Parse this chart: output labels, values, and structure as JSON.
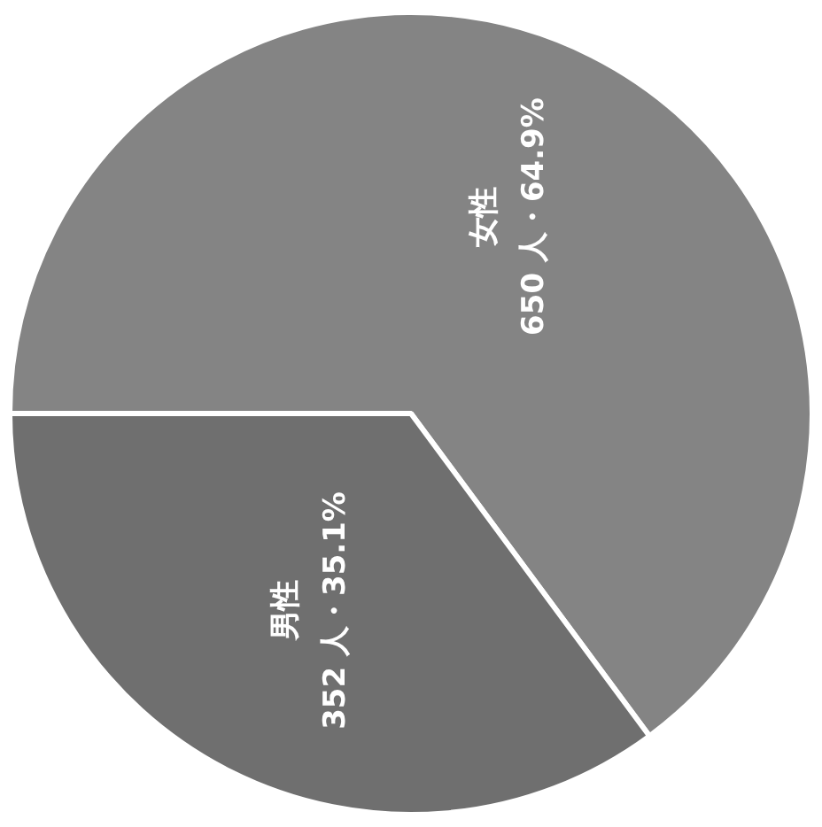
{
  "chart_data": {
    "type": "pie",
    "categories": [
      "女性",
      "男性"
    ],
    "values": [
      650,
      352
    ],
    "value_labels": [
      "650 人・64.9%",
      "352 人・35.1%"
    ],
    "colors": [
      "#848484",
      "#6f6f6f"
    ]
  }
}
